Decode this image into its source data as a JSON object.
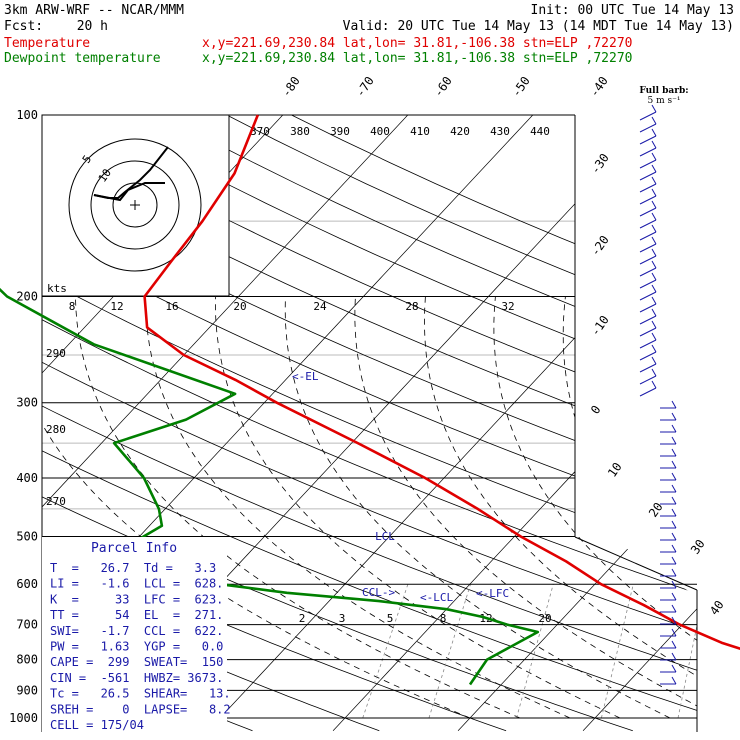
{
  "header": {
    "model": "3km ARW-WRF -- NCAR/MMM",
    "init": "Init: 00 UTC Tue 14 May 13",
    "fcst_label": "Fcst:",
    "fcst_value": "20 h",
    "valid": "Valid: 20 UTC Tue 14 May 13 (14 MDT Tue 14 May 13)",
    "temp_label": "Temperature",
    "dew_label": "Dewpoint temperature",
    "location": "x,y=221.69,230.84   lat,lon= 31.81,-106.38   stn=ELP ,72270",
    "colors": {
      "temperature": "#e00000",
      "dewpoint": "#008000",
      "parcel_text": "#1a1aa8",
      "barbs": "#1a1aa8"
    }
  },
  "barb_legend": {
    "line1": "Full barb:",
    "line2": "5 m s⁻¹"
  },
  "chart_data": {
    "type": "skew-t log-p",
    "y_axis": {
      "label": "pressure (hPa)",
      "scale": "log",
      "range": [
        1000,
        100
      ],
      "ticks": [
        "100",
        "200",
        "300",
        "400",
        "500",
        "600",
        "700",
        "800",
        "900",
        "1000"
      ]
    },
    "isotherm_labels": [
      "-80",
      "-70",
      "-60",
      "-50",
      "-40",
      "-30",
      "-20",
      "-10",
      "0",
      "10",
      "20",
      "30",
      "40"
    ],
    "theta_e_labels": [
      "370",
      "380",
      "390",
      "400",
      "410",
      "420",
      "430",
      "440"
    ],
    "theta_labels": [
      "290",
      "280",
      "270"
    ],
    "mixing_ratio_labels": [
      "2",
      "3",
      "5",
      "8",
      "12",
      "20"
    ],
    "hodograph": {
      "unit_label": "kts",
      "ring_labels": [
        "5",
        "10"
      ],
      "speed_ticks": [
        "8",
        "12",
        "16",
        "20",
        "24",
        "28",
        "32"
      ]
    },
    "series": [
      {
        "name": "Temperature",
        "color": "#e00000",
        "points": [
          [
            880,
            30.8
          ],
          [
            850,
            26.5
          ],
          [
            800,
            20.0
          ],
          [
            750,
            14.5
          ],
          [
            700,
            9.8
          ],
          [
            650,
            5.5
          ],
          [
            600,
            0.5
          ],
          [
            550,
            -4.0
          ],
          [
            500,
            -9.5
          ],
          [
            450,
            -15.0
          ],
          [
            400,
            -21.5
          ],
          [
            350,
            -29.5
          ],
          [
            300,
            -39.0
          ],
          [
            275,
            -44.0
          ],
          [
            250,
            -50.0
          ],
          [
            225,
            -55.0
          ],
          [
            200,
            -57.5
          ],
          [
            175,
            -58.0
          ],
          [
            150,
            -58.5
          ],
          [
            125,
            -59.5
          ],
          [
            100,
            -62.0
          ]
        ]
      },
      {
        "name": "Dewpoint temperature",
        "color": "#008000",
        "points": [
          [
            880,
            -2.5
          ],
          [
            800,
            -3.0
          ],
          [
            720,
            -1.0
          ],
          [
            700,
            -4.0
          ],
          [
            680,
            -6.5
          ],
          [
            660,
            -10.0
          ],
          [
            640,
            -16.0
          ],
          [
            620,
            -24.0
          ],
          [
            600,
            -30.0
          ],
          [
            580,
            -36.0
          ],
          [
            560,
            -42.0
          ],
          [
            540,
            -45.0
          ],
          [
            510,
            -40.0
          ],
          [
            480,
            -39.0
          ],
          [
            450,
            -40.5
          ],
          [
            400,
            -44.0
          ],
          [
            350,
            -49.0
          ],
          [
            320,
            -45.0
          ],
          [
            290,
            -43.0
          ],
          [
            240,
            -58.0
          ],
          [
            200,
            -68.5
          ],
          [
            175,
            -74.0
          ],
          [
            150,
            -79.0
          ],
          [
            125,
            -86.0
          ],
          [
            100,
            -92.0
          ]
        ]
      }
    ],
    "annotations": [
      "<-EL",
      "LCL",
      "CCL->",
      "<-LCL",
      "<-LFC"
    ],
    "wind_barbs_side": "right"
  },
  "parcel_info": {
    "title": "Parcel Info",
    "rows": [
      "T  =   26.7  Td =   3.3",
      "LI =   -1.6  LCL =  628.",
      "K  =     33  LFC =  623.",
      "TT =     54  EL  =  271.",
      "SWI=   -1.7  CCL =  622.",
      "PW =   1.63  YGP =   0.0",
      "CAPE =  299  SWEAT=  150",
      "CIN =  -561  HWBZ= 3673.",
      "Tc =   26.5  SHEAR=   13.",
      "SREH =    0  LAPSE=   8.2",
      "CELL = 175/04"
    ]
  }
}
